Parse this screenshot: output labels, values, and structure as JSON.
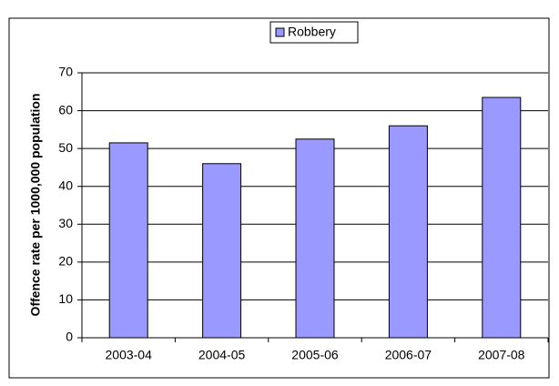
{
  "chart_data": {
    "type": "bar",
    "y_label": "Offence rate per 1000,000 population",
    "categories": [
      "2003-04",
      "2004-05",
      "2005-06",
      "2006-07",
      "2007-08"
    ],
    "series": [
      {
        "name": "Robbery",
        "color": "#9999ff",
        "values": [
          51.5,
          46,
          52.5,
          56,
          63.5
        ]
      }
    ],
    "ylim": [
      0,
      70
    ],
    "yticks": [
      0,
      10,
      20,
      30,
      40,
      50,
      60,
      70
    ],
    "grid": true,
    "legend": "top"
  }
}
